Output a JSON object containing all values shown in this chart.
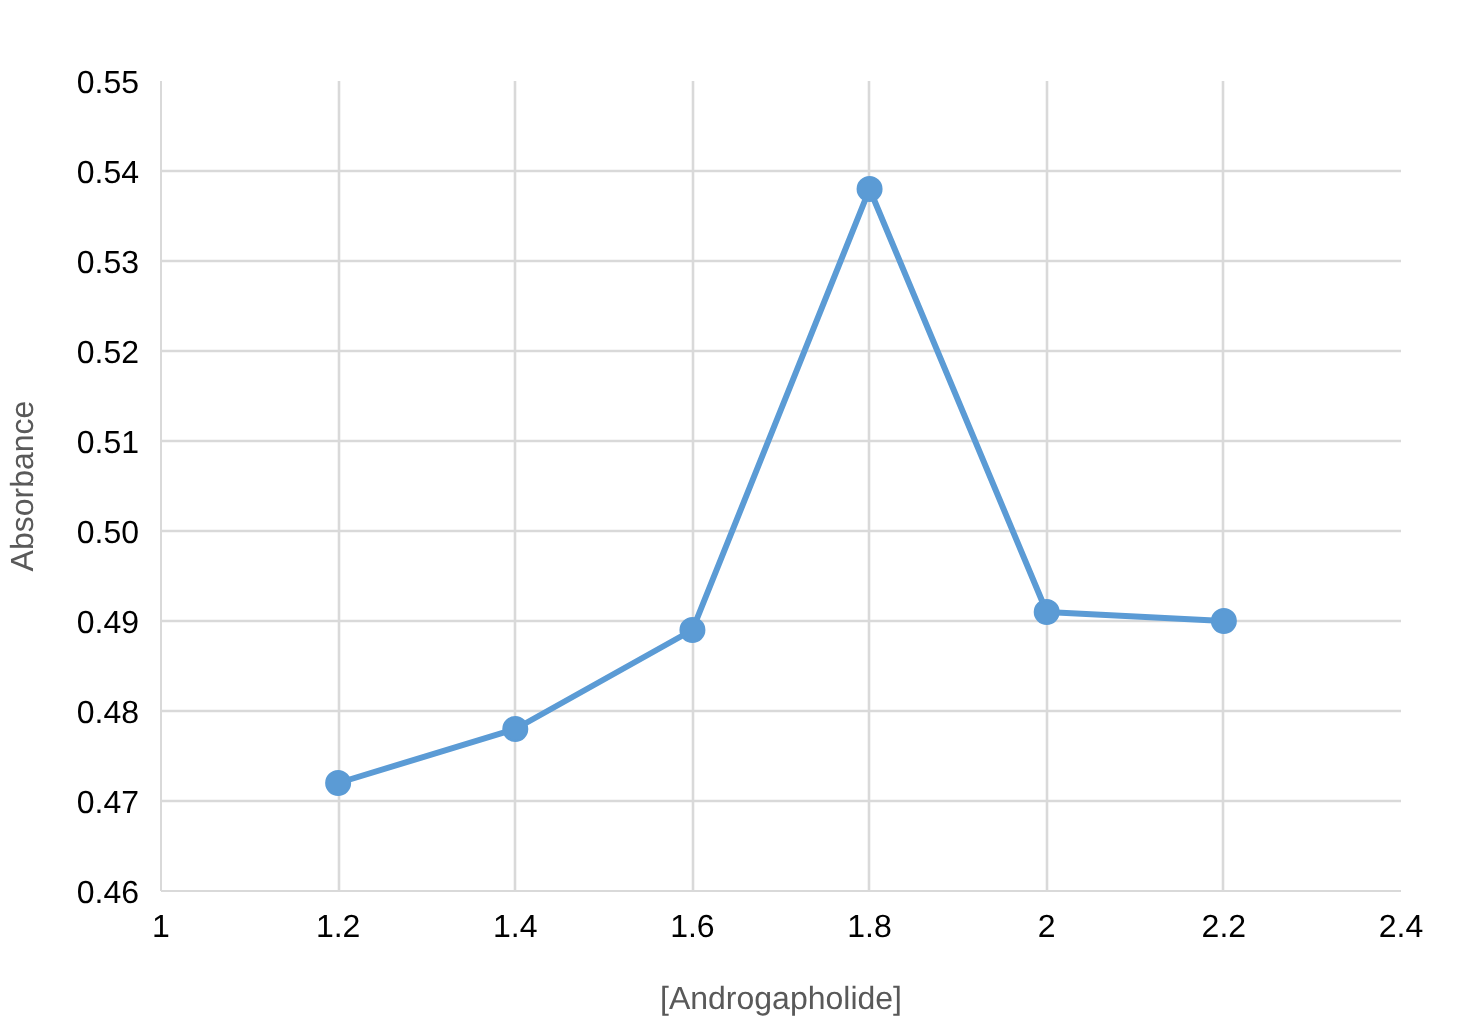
{
  "chart_data": {
    "type": "line",
    "xlabel": "[Androgapholide]",
    "ylabel": "Absorbance",
    "x": [
      1.2,
      1.4,
      1.6,
      1.8,
      2.0,
      2.2
    ],
    "series": [
      {
        "color": "#5b9bd5",
        "values": [
          0.472,
          0.478,
          0.489,
          0.538,
          0.491,
          0.49
        ]
      }
    ],
    "xlim": [
      1,
      2.4
    ],
    "xticks": [
      1,
      1.2,
      1.4,
      1.6,
      1.8,
      2,
      2.2,
      2.4
    ],
    "ylim": [
      0.46,
      0.55
    ],
    "yticks": [
      0.46,
      0.47,
      0.48,
      0.49,
      {
        "value": 0.5,
        "label": "0.50"
      },
      0.51,
      0.52,
      0.53,
      0.54,
      0.55
    ],
    "grid": true,
    "marker": "circle",
    "line_style": "solid"
  }
}
